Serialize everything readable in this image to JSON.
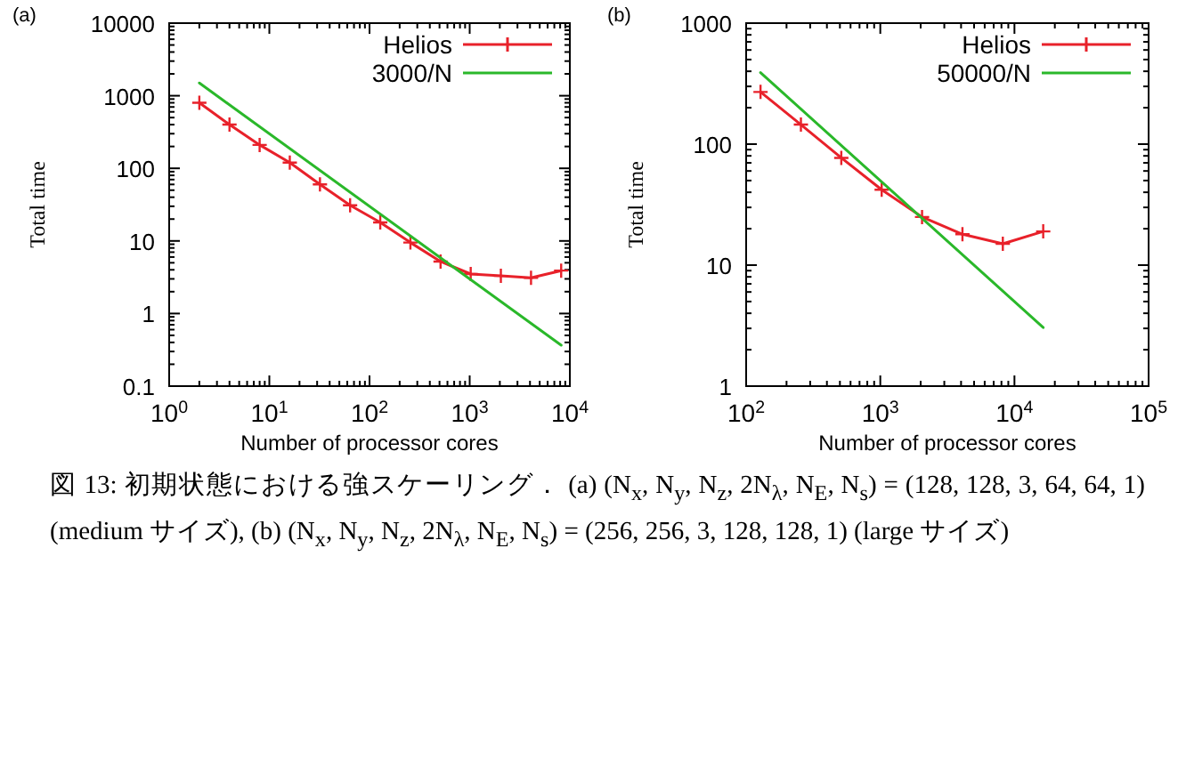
{
  "chart_data": [
    {
      "type": "line",
      "title": "(a)",
      "xlabel": "Number of processor cores",
      "ylabel": "Total time",
      "log": "xy",
      "grid": false,
      "legend": "top right",
      "line_style": "solid",
      "xlim": [
        1,
        10000
      ],
      "xticks": [
        {
          "value": 1,
          "label": "10$^{0}$"
        },
        {
          "value": 10,
          "label": "10$^{1}$"
        },
        {
          "value": 100,
          "label": "10$^{2}$"
        },
        {
          "value": 1000,
          "label": "10$^{3}$"
        },
        {
          "value": 10000,
          "label": "10$^{4}$"
        }
      ],
      "ylim": [
        0.1,
        10000
      ],
      "yticks": [
        0.1,
        1,
        10,
        100,
        1000,
        10000
      ],
      "series": [
        {
          "name": "Helios",
          "color": "#e8212a",
          "marker": "cross",
          "x": [
            2,
            4,
            8,
            16,
            32,
            64,
            128,
            256,
            512,
            1024,
            2048,
            4096,
            8192
          ],
          "values": [
            800,
            400,
            210,
            120,
            60,
            31,
            18,
            9.5,
            5.2,
            3.5,
            3.3,
            3.1,
            3.9
          ]
        },
        {
          "name": "3000/N",
          "color": "#2ab82a",
          "marker": "none",
          "x": [
            2,
            8192
          ],
          "values": [
            1500,
            0.366
          ]
        }
      ],
      "annotations": [
        "図 13: 初期状態における強スケーリング． (a) (N$_{x}$, N$_{y}$, N$_{z}$, 2N$_{λ}$, N$_{E}$, N$_{s}$) = (128, 128, 3, 64, 64, 1) (medium サイズ), (b) (N$_{x}$, N$_{y}$, N$_{z}$, 2N$_{λ}$, N$_{E}$, N$_{s}$) = (256, 256, 3, 128, 128, 1) (large サイズ)"
      ]
    },
    {
      "type": "line",
      "title": "(b)",
      "xlabel": "Number of processor cores",
      "ylabel": "Total time",
      "log": "xy",
      "grid": false,
      "legend": "top right",
      "line_style": "solid",
      "xlim": [
        100,
        100000
      ],
      "xticks": [
        {
          "value": 100,
          "label": "10$^{2}$"
        },
        {
          "value": 1000,
          "label": "10$^{3}$"
        },
        {
          "value": 10000,
          "label": "10$^{4}$"
        },
        {
          "value": 100000,
          "label": "10$^{5}$"
        }
      ],
      "ylim": [
        1,
        1000
      ],
      "yticks": [
        1,
        10,
        100,
        1000
      ],
      "series": [
        {
          "name": "Helios",
          "color": "#e8212a",
          "marker": "cross",
          "x": [
            128,
            256,
            512,
            1024,
            2048,
            4096,
            8192,
            16384
          ],
          "values": [
            270,
            145,
            77,
            42,
            25,
            18,
            15,
            19
          ]
        },
        {
          "name": "50000/N",
          "color": "#2ab82a",
          "marker": "none",
          "x": [
            128,
            16384
          ],
          "values": [
            390,
            3.05
          ]
        }
      ]
    }
  ]
}
